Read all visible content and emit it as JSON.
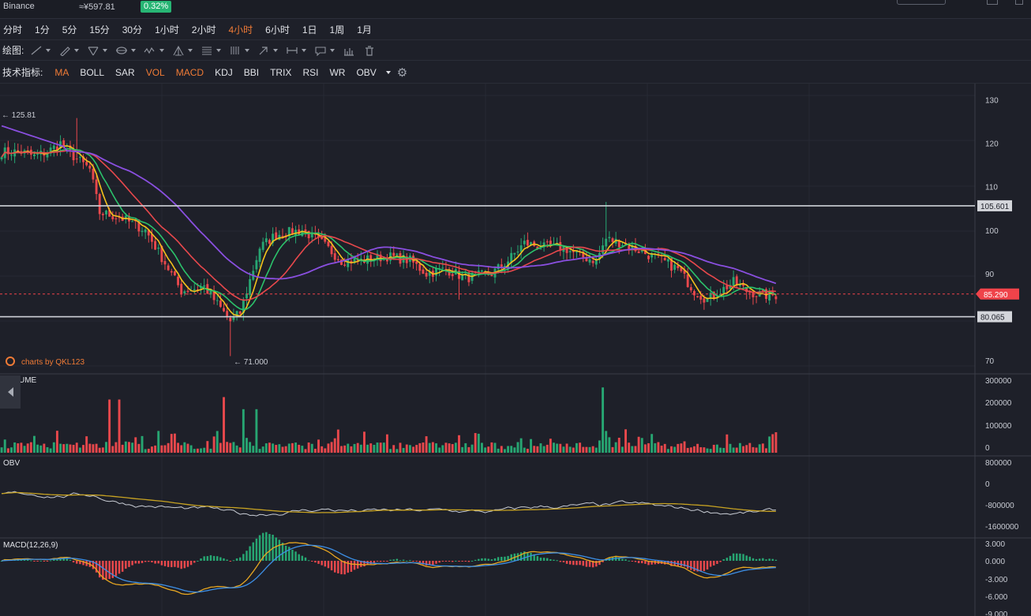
{
  "header": {
    "exchange": "Binance",
    "price_cny": "≈¥597.81",
    "change_pct": "0.32%"
  },
  "intervals": [
    "分时",
    "1分",
    "5分",
    "15分",
    "30分",
    "1小时",
    "2小时",
    "4小时",
    "6小时",
    "1日",
    "1周",
    "1月"
  ],
  "active_interval": "4小时",
  "drawing": {
    "label": "绘图:",
    "tools": [
      "trend-line-icon",
      "pencil-icon",
      "channel-icon",
      "ellipse-icon",
      "pattern-icon",
      "pitchfork-icon",
      "fibonacci-icon",
      "gann-icon",
      "arrow-icon",
      "measure-icon",
      "comment-icon",
      "ruler-icon",
      "trash-icon"
    ]
  },
  "indicators": {
    "label": "技术指标:",
    "items": [
      "MA",
      "BOLL",
      "SAR",
      "VOL",
      "MACD",
      "KDJ",
      "BBI",
      "TRIX",
      "RSI",
      "WR",
      "OBV"
    ],
    "active": [
      "MA",
      "VOL",
      "MACD"
    ]
  },
  "colors": {
    "up": "#27a672",
    "down": "#e8484c",
    "ma_fast": "#f4c21c",
    "ma_mid": "#2bc26b",
    "ma_slow": "#e8484c",
    "ma_long": "#8a4fe0",
    "current_price": "#f0434a",
    "accent": "#f07b36",
    "macd_dif": "#3d8fe6",
    "macd_dea": "#e8a721",
    "obv_line": "#c8ccd4",
    "obv_ma": "#c8a322"
  },
  "chart_data": {
    "type": "candlestick",
    "interval": "4小时",
    "price_axis": {
      "ticks": [
        130,
        120,
        110,
        100,
        90,
        70
      ],
      "range": [
        68,
        133
      ]
    },
    "price_annotations": {
      "high_label": "← 125.81",
      "low_label": "← 71.000",
      "current_price": "85.290",
      "line_upper": "105.601",
      "line_lower": "80.065"
    },
    "watermark": "charts by QKL123",
    "ohlc_knots": [
      [
        0,
        118
      ],
      [
        6,
        118
      ],
      [
        10,
        117
      ],
      [
        14,
        118
      ],
      [
        18,
        120
      ],
      [
        22,
        117
      ],
      [
        27,
        114
      ],
      [
        30,
        104
      ],
      [
        36,
        103
      ],
      [
        44,
        100
      ],
      [
        48,
        95
      ],
      [
        55,
        86
      ],
      [
        62,
        87
      ],
      [
        67,
        82
      ],
      [
        70,
        79
      ],
      [
        73,
        81
      ],
      [
        79,
        96
      ],
      [
        84,
        99
      ],
      [
        92,
        100
      ],
      [
        98,
        97
      ],
      [
        104,
        93
      ],
      [
        110,
        93
      ],
      [
        118,
        94
      ],
      [
        125,
        93
      ],
      [
        130,
        90
      ],
      [
        136,
        91
      ],
      [
        142,
        89
      ],
      [
        150,
        90
      ],
      [
        155,
        93
      ],
      [
        160,
        97
      ],
      [
        166,
        96
      ],
      [
        172,
        96
      ],
      [
        177,
        94
      ],
      [
        182,
        93
      ],
      [
        185,
        98
      ],
      [
        190,
        97
      ],
      [
        196,
        95
      ],
      [
        202,
        93
      ],
      [
        207,
        91
      ],
      [
        212,
        86
      ],
      [
        216,
        84
      ],
      [
        220,
        86
      ],
      [
        224,
        88
      ],
      [
        228,
        86
      ],
      [
        233,
        85
      ],
      [
        237,
        85
      ]
    ],
    "volume_panel": {
      "title": "VOLUME",
      "ticks": [
        "300000",
        "200000",
        "100000",
        "0"
      ]
    },
    "obv_panel": {
      "title": "OBV",
      "ticks": [
        "800000",
        "0",
        "-800000",
        "-1600000"
      ]
    },
    "macd_panel": {
      "title": "MACD(12,26,9)",
      "ticks": [
        "3.000",
        "0.000",
        "-3.000",
        "-6.000",
        "-9.000"
      ]
    }
  }
}
